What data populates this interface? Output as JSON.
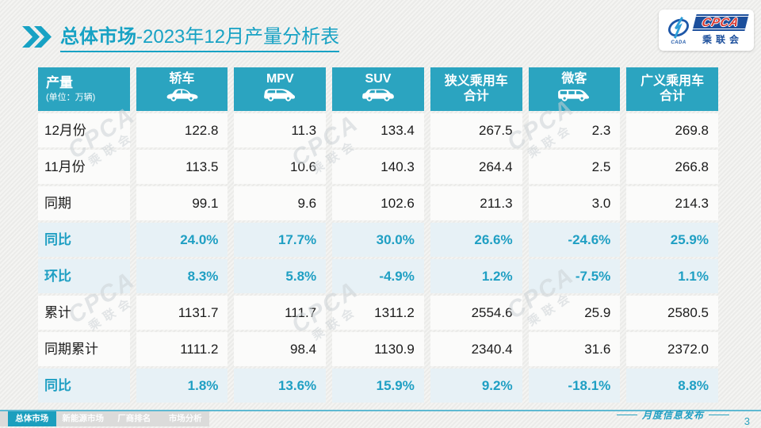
{
  "slide": {
    "title_prefix": "总体市场",
    "title_rest": "-2023年12月产量分析表",
    "footer_caption": "月度信息发布",
    "page_number": "3"
  },
  "logo": {
    "cpca": "CPCA",
    "org": "乘联会",
    "emblem_text": "CADA"
  },
  "watermark": {
    "line1": "CPCA",
    "line2": "乘联会"
  },
  "nav_tabs": [
    {
      "label": "总体市场",
      "active": true
    },
    {
      "label": "新能源市场",
      "active": false
    },
    {
      "label": "厂商排名",
      "active": false
    },
    {
      "label": "市场分析",
      "active": false
    }
  ],
  "table": {
    "corner": {
      "title": "产量",
      "unit": "(单位：万辆)"
    },
    "columns": [
      {
        "label": "轿车",
        "sublabel": "",
        "icon": "sedan-icon"
      },
      {
        "label": "MPV",
        "sublabel": "",
        "icon": "mpv-icon"
      },
      {
        "label": "SUV",
        "sublabel": "",
        "icon": "suv-icon"
      },
      {
        "label": "狭义乘用车",
        "sublabel": "合计",
        "icon": ""
      },
      {
        "label": "微客",
        "sublabel": "",
        "icon": "microvan-icon"
      },
      {
        "label": "广义乘用车",
        "sublabel": "合计",
        "icon": ""
      }
    ],
    "rows": [
      {
        "label": "12月份",
        "type": "value",
        "values": [
          "122.8",
          "11.3",
          "133.4",
          "267.5",
          "2.3",
          "269.8"
        ]
      },
      {
        "label": "11月份",
        "type": "value",
        "values": [
          "113.5",
          "10.6",
          "140.3",
          "264.4",
          "2.5",
          "266.8"
        ]
      },
      {
        "label": "同期",
        "type": "value",
        "values": [
          "99.1",
          "9.6",
          "102.6",
          "211.3",
          "3.0",
          "214.3"
        ]
      },
      {
        "label": "同比",
        "type": "percent",
        "values": [
          "24.0%",
          "17.7%",
          "30.0%",
          "26.6%",
          "-24.6%",
          "25.9%"
        ]
      },
      {
        "label": "环比",
        "type": "percent",
        "values": [
          "8.3%",
          "5.8%",
          "-4.9%",
          "1.2%",
          "-7.5%",
          "1.1%"
        ]
      },
      {
        "label": "累计",
        "type": "value",
        "values": [
          "1131.7",
          "111.7",
          "1311.2",
          "2554.6",
          "25.9",
          "2580.5"
        ]
      },
      {
        "label": "同期累计",
        "type": "value",
        "values": [
          "1111.2",
          "98.4",
          "1130.9",
          "2340.4",
          "31.6",
          "2372.0"
        ]
      },
      {
        "label": "同比",
        "type": "percent",
        "values": [
          "1.8%",
          "13.6%",
          "15.9%",
          "9.2%",
          "-18.1%",
          "8.8%"
        ]
      }
    ]
  },
  "colors": {
    "accent": "#17A2C4",
    "header_bg": "#2BA4C0",
    "percent_row_bg": "#E7F1F6",
    "percent_text": "#1F9FC3",
    "logo_blue": "#1C4F9C",
    "logo_red": "#D93830"
  }
}
